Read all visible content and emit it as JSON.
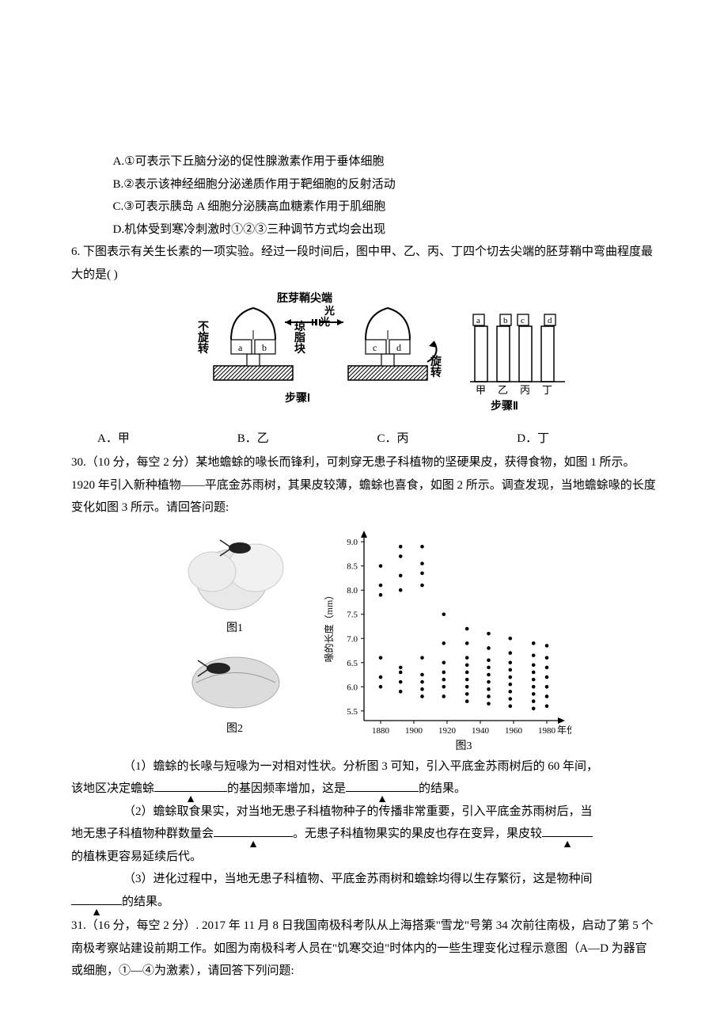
{
  "q5": {
    "optA": "A.①可表示下丘脑分泌的促性腺激素作用于垂体细胞",
    "optB": "B.②表示该神经细胞分泌递质作用于靶细胞的反射活动",
    "optC": "C.③可表示胰岛 A 细胞分泌胰高血糖素作用于肌细胞",
    "optD": "D.机体受到寒冷刺激时①②③三种调节方式均会出现"
  },
  "q6": {
    "stem": "6. 下图表示有关生长素的一项实验。经过一段时间后，图中甲、乙、丙、丁四个切去尖端的胚芽鞘中弯曲程度最大的是(  )",
    "fig": {
      "tip_label": "胚芽鞘尖端",
      "no_rotate": "不旋转",
      "agar": "琼脂块",
      "light": "光",
      "rotate": "旋转",
      "step1": "步骤Ⅰ",
      "step2": "步骤Ⅱ",
      "boxes": [
        "a",
        "b",
        "c",
        "d"
      ],
      "cols": [
        "甲",
        "乙",
        "丙",
        "丁"
      ],
      "colors": {
        "stroke": "#000000",
        "fill_block": "#ffffff",
        "fill_dark": "#333333",
        "hatch": "#000000"
      }
    },
    "optA": "A．甲",
    "optB": "B．乙",
    "optC": "C．丙",
    "optD": "D．丁"
  },
  "q30": {
    "stem": "30.（10 分，每空 2 分）某地蟾蜍的喙长而锋利，可刺穿无患子科植物的坚硬果皮，获得食物，如图 1 所示。1920 年引入新种植物——平底金苏雨树，其果皮较薄，蟾蜍也喜食，如图 2 所示。调查发现，当地蟾蜍喙的长度变化如图 3 所示。请回答问题:",
    "fig_left": {
      "cap1": "图1",
      "cap2": "图2"
    },
    "fig3": {
      "cap": "图3",
      "ylabel": "喙的长度（mm）",
      "xlabel": "年份",
      "yticks": [
        5.5,
        6.0,
        6.5,
        7.0,
        7.5,
        8.0,
        8.5,
        9.0
      ],
      "xticks": [
        1880,
        1900,
        1920,
        1940,
        1960,
        1980
      ],
      "plot": {
        "xlim": [
          1870,
          1990
        ],
        "ylim": [
          5.3,
          9.2
        ],
        "marker_r": 2.3,
        "marker_color": "#000000",
        "axis_color": "#000000",
        "tick_fontsize": 11
      },
      "points": [
        [
          1880,
          6.0
        ],
        [
          1880,
          6.2
        ],
        [
          1880,
          6.6
        ],
        [
          1880,
          7.9
        ],
        [
          1880,
          8.1
        ],
        [
          1880,
          8.5
        ],
        [
          1892,
          5.9
        ],
        [
          1892,
          6.1
        ],
        [
          1892,
          6.3
        ],
        [
          1892,
          6.4
        ],
        [
          1892,
          8.0
        ],
        [
          1892,
          8.3
        ],
        [
          1892,
          8.7
        ],
        [
          1892,
          8.9
        ],
        [
          1905,
          5.8
        ],
        [
          1905,
          5.95
        ],
        [
          1905,
          6.1
        ],
        [
          1905,
          6.25
        ],
        [
          1905,
          6.6
        ],
        [
          1905,
          8.1
        ],
        [
          1905,
          8.35
        ],
        [
          1905,
          8.55
        ],
        [
          1905,
          8.9
        ],
        [
          1918,
          5.8
        ],
        [
          1918,
          6.0
        ],
        [
          1918,
          6.15
        ],
        [
          1918,
          6.3
        ],
        [
          1918,
          6.5
        ],
        [
          1918,
          6.9
        ],
        [
          1918,
          7.5
        ],
        [
          1932,
          5.7
        ],
        [
          1932,
          5.85
        ],
        [
          1932,
          6.0
        ],
        [
          1932,
          6.15
        ],
        [
          1932,
          6.3
        ],
        [
          1932,
          6.45
        ],
        [
          1932,
          6.6
        ],
        [
          1932,
          6.9
        ],
        [
          1932,
          7.2
        ],
        [
          1945,
          5.65
        ],
        [
          1945,
          5.8
        ],
        [
          1945,
          5.95
        ],
        [
          1945,
          6.1
        ],
        [
          1945,
          6.25
        ],
        [
          1945,
          6.4
        ],
        [
          1945,
          6.55
        ],
        [
          1945,
          6.8
        ],
        [
          1945,
          7.1
        ],
        [
          1958,
          5.6
        ],
        [
          1958,
          5.75
        ],
        [
          1958,
          5.9
        ],
        [
          1958,
          6.05
        ],
        [
          1958,
          6.2
        ],
        [
          1958,
          6.35
        ],
        [
          1958,
          6.5
        ],
        [
          1958,
          6.7
        ],
        [
          1958,
          7.0
        ],
        [
          1972,
          5.55
        ],
        [
          1972,
          5.7
        ],
        [
          1972,
          5.85
        ],
        [
          1972,
          6.0
        ],
        [
          1972,
          6.15
        ],
        [
          1972,
          6.3
        ],
        [
          1972,
          6.45
        ],
        [
          1972,
          6.65
        ],
        [
          1972,
          6.9
        ],
        [
          1980,
          5.6
        ],
        [
          1980,
          5.8
        ],
        [
          1980,
          6.0
        ],
        [
          1980,
          6.2
        ],
        [
          1980,
          6.4
        ],
        [
          1980,
          6.6
        ],
        [
          1980,
          6.85
        ]
      ]
    },
    "sub1a": "（1）蟾蜍的长喙与短喙为一对相对性状。分析图 3 可知，引入平底金苏雨树后的 60 年间，",
    "sub1b_pre": "该地区决定蟾蜍",
    "sub1b_mid": "的基因频率增加，这是",
    "sub1b_post": "的结果。",
    "sub2a": "（2）蟾蜍取食果实，对当地无患子科植物种子的传播非常重要，引入平底金苏雨树后，当",
    "sub2b_pre": "地无患子科植物种群数量会",
    "sub2b_mid": "。无患子科植物果实的果皮也存在变异，果皮较",
    "sub2c": "的植株更容易延续后代。",
    "sub3a": "（3）进化过程中，当地无患子科植物、平底金苏雨树和蟾蜍均得以生存繁衍，这是物种间",
    "sub3b": "的结果。"
  },
  "q31": {
    "stem": "31.（16 分，每空 2 分）. 2017 年 11 月 8 日我国南极科考队从上海搭乘\"雪龙\"号第 34 次前往南极，启动了第 5 个南极考察站建设前期工作。如图为南极科考人员在\"饥寒交迫\"时体内的一些生理变化过程示意图（A—D 为器官或细胞，①—④为激素），请回答下列问题:"
  }
}
